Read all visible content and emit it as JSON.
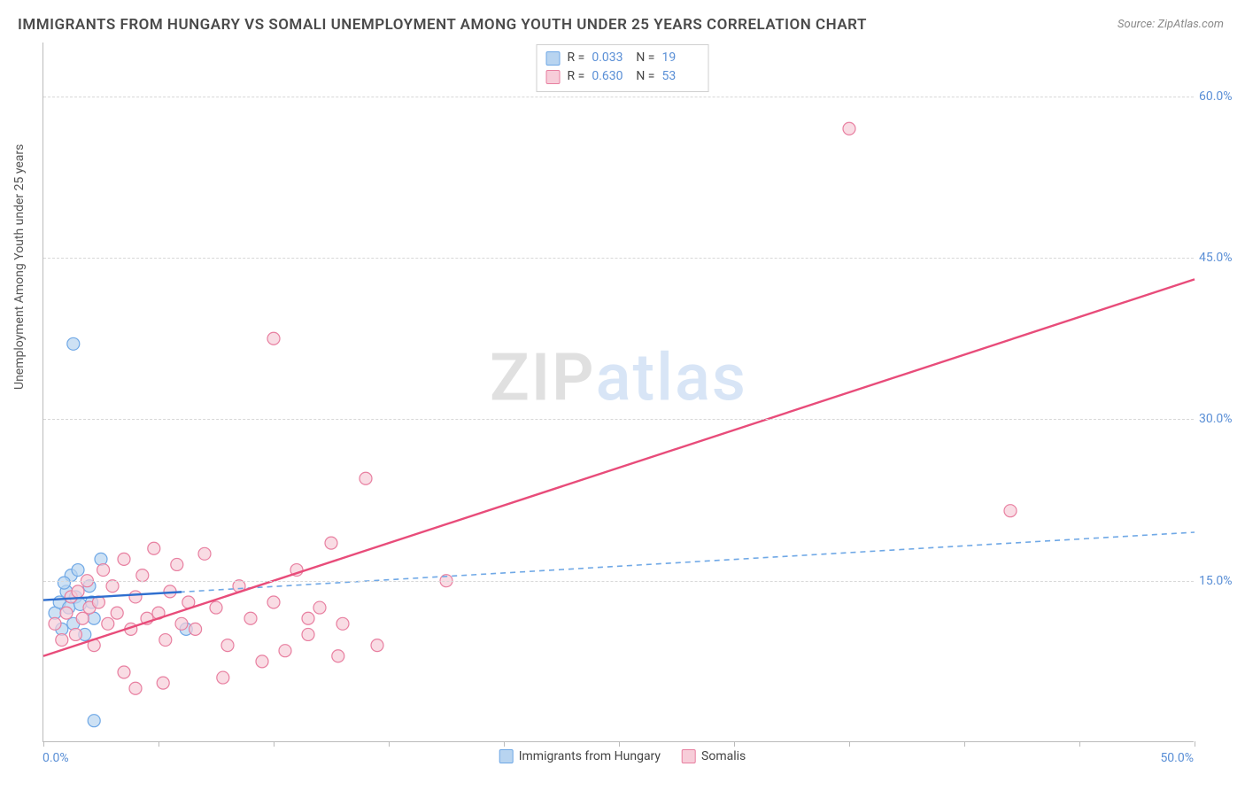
{
  "title": "IMMIGRANTS FROM HUNGARY VS SOMALI UNEMPLOYMENT AMONG YOUTH UNDER 25 YEARS CORRELATION CHART",
  "source": "Source: ZipAtlas.com",
  "ylabel": "Unemployment Among Youth under 25 years",
  "watermark": {
    "part1": "ZIP",
    "part2": "atlas"
  },
  "chart": {
    "type": "scatter",
    "xlim": [
      0,
      50
    ],
    "ylim": [
      0,
      65
    ],
    "xtick_positions": [
      0,
      5,
      10,
      15,
      20,
      25,
      30,
      35,
      40,
      45,
      50
    ],
    "xtick_labels": {
      "first": "0.0%",
      "last": "50.0%"
    },
    "ytick_positions": [
      15,
      30,
      45,
      60
    ],
    "ytick_labels": [
      "15.0%",
      "30.0%",
      "45.0%",
      "60.0%"
    ],
    "grid_color": "#d8d8d8",
    "axis_color": "#bbbbbb",
    "background_color": "#ffffff",
    "marker_radius": 7,
    "marker_stroke_width": 1.2,
    "series": [
      {
        "name": "Immigrants from Hungary",
        "color_fill": "#b8d4f0",
        "color_stroke": "#6fa8e6",
        "line_color": "#2f6fcf",
        "dash_color": "#6fa8e6",
        "R": "0.033",
        "N": "19",
        "trend": {
          "x1": 0,
          "y1": 13.2,
          "x2": 50,
          "y2": 19.5
        },
        "solid_portion": {
          "x1": 0,
          "x2": 6
        },
        "points": [
          [
            0.5,
            12.0
          ],
          [
            0.7,
            13.0
          ],
          [
            0.8,
            10.5
          ],
          [
            1.0,
            14.0
          ],
          [
            1.1,
            12.5
          ],
          [
            1.2,
            15.5
          ],
          [
            1.3,
            11.0
          ],
          [
            1.4,
            13.5
          ],
          [
            1.5,
            16.0
          ],
          [
            1.6,
            12.8
          ],
          [
            1.8,
            10.0
          ],
          [
            2.0,
            14.5
          ],
          [
            2.1,
            13.0
          ],
          [
            2.2,
            11.5
          ],
          [
            2.5,
            17.0
          ],
          [
            1.3,
            37.0
          ],
          [
            6.2,
            10.5
          ],
          [
            2.2,
            2.0
          ],
          [
            0.9,
            14.8
          ]
        ]
      },
      {
        "name": "Somalis",
        "color_fill": "#f7cdd9",
        "color_stroke": "#e87fa0",
        "line_color": "#e84c7a",
        "R": "0.630",
        "N": "53",
        "trend": {
          "x1": 0,
          "y1": 8.0,
          "x2": 50,
          "y2": 43.0
        },
        "solid_portion": {
          "x1": 0,
          "x2": 50
        },
        "points": [
          [
            0.5,
            11.0
          ],
          [
            0.8,
            9.5
          ],
          [
            1.0,
            12.0
          ],
          [
            1.2,
            13.5
          ],
          [
            1.4,
            10.0
          ],
          [
            1.5,
            14.0
          ],
          [
            1.7,
            11.5
          ],
          [
            1.9,
            15.0
          ],
          [
            2.0,
            12.5
          ],
          [
            2.2,
            9.0
          ],
          [
            2.4,
            13.0
          ],
          [
            2.6,
            16.0
          ],
          [
            2.8,
            11.0
          ],
          [
            3.0,
            14.5
          ],
          [
            3.2,
            12.0
          ],
          [
            3.5,
            17.0
          ],
          [
            3.8,
            10.5
          ],
          [
            4.0,
            13.5
          ],
          [
            4.3,
            15.5
          ],
          [
            4.5,
            11.5
          ],
          [
            4.8,
            18.0
          ],
          [
            5.0,
            12.0
          ],
          [
            5.3,
            9.5
          ],
          [
            5.5,
            14.0
          ],
          [
            5.8,
            16.5
          ],
          [
            6.0,
            11.0
          ],
          [
            6.3,
            13.0
          ],
          [
            6.6,
            10.5
          ],
          [
            7.0,
            17.5
          ],
          [
            7.5,
            12.5
          ],
          [
            8.0,
            9.0
          ],
          [
            8.5,
            14.5
          ],
          [
            9.0,
            11.5
          ],
          [
            9.5,
            7.5
          ],
          [
            10.0,
            13.0
          ],
          [
            10.5,
            8.5
          ],
          [
            11.0,
            16.0
          ],
          [
            11.5,
            10.0
          ],
          [
            12.0,
            12.5
          ],
          [
            10.0,
            37.5
          ],
          [
            12.5,
            18.5
          ],
          [
            13.0,
            11.0
          ],
          [
            14.0,
            24.5
          ],
          [
            14.5,
            9.0
          ],
          [
            17.5,
            15.0
          ],
          [
            11.5,
            11.5
          ],
          [
            12.8,
            8.0
          ],
          [
            5.2,
            5.5
          ],
          [
            7.8,
            6.0
          ],
          [
            4.0,
            5.0
          ],
          [
            35.0,
            57.0
          ],
          [
            42.0,
            21.5
          ],
          [
            3.5,
            6.5
          ]
        ]
      }
    ]
  },
  "top_legend": {
    "r_label": "R =",
    "n_label": "N ="
  },
  "bottom_legend": {
    "items": [
      "Immigrants from Hungary",
      "Somalis"
    ]
  }
}
